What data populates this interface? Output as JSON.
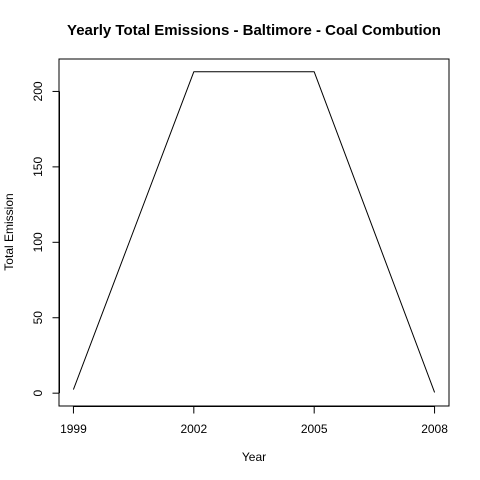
{
  "chart_data": {
    "type": "line",
    "title": "Yearly Total Emissions - Baltimore - Coal Combution",
    "xlabel": "Year",
    "ylabel": "Total Emission",
    "x": [
      1999,
      2002,
      2005,
      2008
    ],
    "x_tick_labels": [
      "1999",
      "2002",
      "2005",
      "2008"
    ],
    "y_ticks": [
      0,
      50,
      100,
      150,
      200
    ],
    "y_tick_labels": [
      "0",
      "50",
      "100",
      "150",
      "200"
    ],
    "xlim": [
      1998.64,
      2008.36
    ],
    "ylim": [
      -8.5,
      221.5
    ],
    "series": [
      {
        "values": [
          2.35,
          213.0,
          213.0,
          0.5
        ]
      }
    ],
    "grid": false,
    "legend": "none",
    "colors": {
      "line": "#000000",
      "axis": "#000000",
      "background": "#ffffff"
    }
  }
}
